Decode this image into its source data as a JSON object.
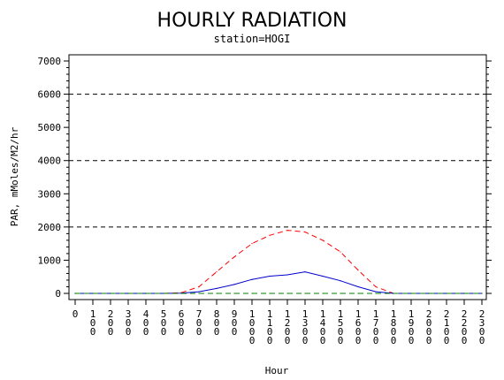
{
  "chart_data": {
    "type": "line",
    "title": "HOURLY RADIATION",
    "subtitle": "station=HOGI",
    "xlabel": "Hour",
    "ylabel": "PAR, mMoles/M2/hr",
    "xlim": [
      0,
      2300
    ],
    "ylim": [
      0,
      7000
    ],
    "x_ticks": [
      0,
      100,
      200,
      300,
      400,
      500,
      600,
      700,
      800,
      900,
      1000,
      1100,
      1200,
      1300,
      1400,
      1500,
      1600,
      1700,
      1800,
      1900,
      2000,
      2100,
      2200,
      2300
    ],
    "x_tick_labels": [
      "0",
      "100",
      "200",
      "300",
      "400",
      "500",
      "600",
      "700",
      "800",
      "900",
      "1000",
      "1100",
      "1200",
      "1300",
      "1400",
      "1500",
      "1600",
      "1700",
      "1800",
      "1900",
      "2000",
      "2100",
      "2200",
      "2300"
    ],
    "y_ticks": [
      0,
      1000,
      2000,
      3000,
      4000,
      5000,
      6000,
      7000
    ],
    "y_tick_labels": [
      "0",
      "1000",
      "2000",
      "3000",
      "4000",
      "5000",
      "6000",
      "7000"
    ],
    "reference_lines": [
      2000,
      4000,
      6000
    ],
    "x": [
      0,
      100,
      200,
      300,
      400,
      500,
      600,
      700,
      800,
      900,
      1000,
      1100,
      1200,
      1300,
      1400,
      1500,
      1600,
      1700,
      1800,
      1900,
      2000,
      2100,
      2200,
      2300
    ],
    "series": [
      {
        "style": "dashed",
        "color": "#ff0000",
        "values": [
          0,
          0,
          0,
          0,
          0,
          0,
          20,
          200,
          650,
          1100,
          1500,
          1750,
          1900,
          1850,
          1600,
          1250,
          700,
          200,
          0,
          0,
          0,
          0,
          0,
          0
        ]
      },
      {
        "style": "solid",
        "color": "#0000cc",
        "values": [
          0,
          0,
          0,
          0,
          0,
          0,
          5,
          50,
          150,
          270,
          420,
          520,
          560,
          650,
          520,
          380,
          200,
          50,
          0,
          0,
          0,
          0,
          0,
          0
        ]
      },
      {
        "style": "dashed",
        "color": "#008000",
        "values": [
          0,
          0,
          0,
          0,
          0,
          0,
          0,
          0,
          0,
          0,
          0,
          0,
          0,
          0,
          0,
          0,
          0,
          0,
          0,
          0,
          0,
          0,
          0,
          0
        ]
      }
    ]
  }
}
